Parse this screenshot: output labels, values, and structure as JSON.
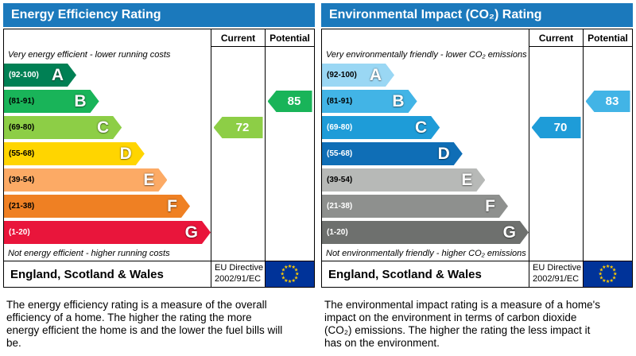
{
  "colors": {
    "header_bg": "#1b79bc",
    "header_text": "#ffffff",
    "flag_blue": "#003399",
    "star_yellow": "#ffcc00"
  },
  "chart_data": [
    {
      "type": "bar",
      "title": "Energy Efficiency Rating",
      "categories": [
        "A",
        "B",
        "C",
        "D",
        "E",
        "F",
        "G"
      ],
      "band_ranges": [
        "92-100",
        "81-91",
        "69-80",
        "55-68",
        "39-54",
        "21-38",
        "1-20"
      ],
      "values": [
        35,
        46,
        57,
        68,
        79,
        90,
        100
      ],
      "current": 72,
      "current_band": "C",
      "potential": 85,
      "potential_band": "B",
      "xlabel": "",
      "ylabel": "",
      "legend": [
        "Current",
        "Potential"
      ]
    },
    {
      "type": "bar",
      "title": "Environmental Impact (CO₂) Rating",
      "categories": [
        "A",
        "B",
        "C",
        "D",
        "E",
        "F",
        "G"
      ],
      "band_ranges": [
        "92-100",
        "81-91",
        "69-80",
        "55-68",
        "39-54",
        "21-38",
        "1-20"
      ],
      "values": [
        35,
        46,
        57,
        68,
        79,
        90,
        100
      ],
      "current": 70,
      "current_band": "C",
      "potential": 83,
      "potential_band": "B",
      "xlabel": "",
      "ylabel": "",
      "legend": [
        "Current",
        "Potential"
      ]
    }
  ],
  "panels": [
    {
      "title": "Energy Efficiency Rating",
      "columns": {
        "current": "Current",
        "potential": "Potential"
      },
      "top_note": "Very energy efficient - lower running costs",
      "bottom_note": "Not energy efficient - higher running costs",
      "bands": [
        {
          "letter": "A",
          "range": "(92-100)",
          "color": "#008054",
          "range_color": "#ffffff",
          "width": "35%"
        },
        {
          "letter": "B",
          "range": "(81-91)",
          "color": "#19b459",
          "range_color": "#000000",
          "width": "46%"
        },
        {
          "letter": "C",
          "range": "(69-80)",
          "color": "#8dce46",
          "range_color": "#000000",
          "width": "57%"
        },
        {
          "letter": "D",
          "range": "(55-68)",
          "color": "#ffd500",
          "range_color": "#000000",
          "width": "68%"
        },
        {
          "letter": "E",
          "range": "(39-54)",
          "color": "#fcaa65",
          "range_color": "#000000",
          "width": "79%"
        },
        {
          "letter": "F",
          "range": "(21-38)",
          "color": "#ef8023",
          "range_color": "#000000",
          "width": "90%"
        },
        {
          "letter": "G",
          "range": "(1-20)",
          "color": "#e9153b",
          "range_color": "#ffffff",
          "width": "100%"
        }
      ],
      "current": {
        "value": "72",
        "band": "C",
        "color": "#8dce46"
      },
      "potential": {
        "value": "85",
        "band": "B",
        "color": "#19b459"
      },
      "footer": {
        "region": "England, Scotland & Wales",
        "directive_line1": "EU Directive",
        "directive_line2": "2002/91/EC"
      },
      "description": "The energy efficiency rating is a measure of the overall efficiency of a home. The higher the rating the more energy efficient the home is and the lower the fuel bills will be."
    },
    {
      "title": "Environmental Impact (CO₂) Rating",
      "columns": {
        "current": "Current",
        "potential": "Potential"
      },
      "top_note": "Very environmentally friendly - lower CO₂ emissions",
      "bottom_note": "Not environmentally friendly - higher CO₂ emissions",
      "bands": [
        {
          "letter": "A",
          "range": "(92-100)",
          "color": "#9ad7f4",
          "range_color": "#000000",
          "width": "35%"
        },
        {
          "letter": "B",
          "range": "(81-91)",
          "color": "#42b4e6",
          "range_color": "#000000",
          "width": "46%"
        },
        {
          "letter": "C",
          "range": "(69-80)",
          "color": "#1e9cd8",
          "range_color": "#ffffff",
          "width": "57%"
        },
        {
          "letter": "D",
          "range": "(55-68)",
          "color": "#0f6eb6",
          "range_color": "#ffffff",
          "width": "68%"
        },
        {
          "letter": "E",
          "range": "(39-54)",
          "color": "#b7b9b7",
          "range_color": "#000000",
          "width": "79%"
        },
        {
          "letter": "F",
          "range": "(21-38)",
          "color": "#8e908e",
          "range_color": "#ffffff",
          "width": "90%"
        },
        {
          "letter": "G",
          "range": "(1-20)",
          "color": "#6e706e",
          "range_color": "#ffffff",
          "width": "100%"
        }
      ],
      "current": {
        "value": "70",
        "band": "C",
        "color": "#1e9cd8"
      },
      "potential": {
        "value": "83",
        "band": "B",
        "color": "#42b4e6"
      },
      "footer": {
        "region": "England, Scotland & Wales",
        "directive_line1": "EU Directive",
        "directive_line2": "2002/91/EC"
      },
      "description": "The environmental impact rating is a measure of a home's impact on the environment in terms of carbon dioxide (CO₂) emissions. The higher the rating the less impact it has on the environment."
    }
  ]
}
